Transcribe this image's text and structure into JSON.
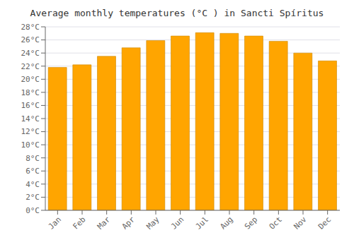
{
  "chart_data": {
    "type": "bar",
    "title": "Average monthly temperatures (°C ) in Sancti Spíritus",
    "categories": [
      "Jan",
      "Feb",
      "Mar",
      "Apr",
      "May",
      "Jun",
      "Jul",
      "Aug",
      "Sep",
      "Oct",
      "Nov",
      "Dec"
    ],
    "values": [
      21.8,
      22.2,
      23.5,
      24.8,
      25.9,
      26.6,
      27.1,
      27.0,
      26.6,
      25.8,
      24.0,
      22.8
    ],
    "color": "#FFA500",
    "ylim": [
      0,
      28
    ],
    "yticks": [
      {
        "value": 0,
        "label": "0°C"
      },
      {
        "value": 2,
        "label": "2°C"
      },
      {
        "value": 4,
        "label": "4°C"
      },
      {
        "value": 6,
        "label": "6°C"
      },
      {
        "value": 8,
        "label": "8°C"
      },
      {
        "value": 10,
        "label": "10°C"
      },
      {
        "value": 12,
        "label": "12°C"
      },
      {
        "value": 14,
        "label": "14°C"
      },
      {
        "value": 16,
        "label": "16°C"
      },
      {
        "value": 18,
        "label": "18°C"
      },
      {
        "value": 20,
        "label": "20°C"
      },
      {
        "value": 22,
        "label": "22°C"
      },
      {
        "value": 24,
        "label": "24°C"
      },
      {
        "value": 26,
        "label": "26°C"
      },
      {
        "value": 28,
        "label": "28°C"
      }
    ],
    "grid": true
  }
}
